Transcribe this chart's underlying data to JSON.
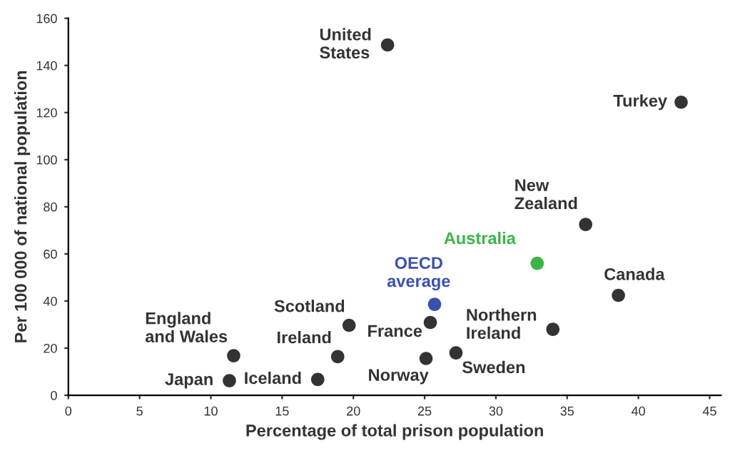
{
  "chart_data": {
    "type": "scatter",
    "xlabel": "Percentage of total prison population",
    "ylabel": "Per 100 000 of national population",
    "xlim": [
      0,
      45.8
    ],
    "xticks": [
      0,
      5,
      10,
      15,
      20,
      25,
      30,
      35,
      40,
      45
    ],
    "ylim": [
      0,
      160
    ],
    "yticks": [
      0,
      20,
      40,
      60,
      80,
      100,
      120,
      140,
      160
    ],
    "grid": false,
    "legend": false,
    "marker": "circle",
    "series": [
      {
        "color": "#333333",
        "x": [
          22.4,
          43.0,
          36.3,
          38.6,
          34.0,
          25.4,
          27.2,
          25.1,
          19.7,
          18.9,
          17.5,
          11.6,
          11.3
        ],
        "values": [
          148.7,
          124.4,
          72.5,
          42.4,
          28,
          30.9,
          18,
          15.6,
          29.7,
          16.4,
          6.7,
          16.8,
          6.2
        ]
      },
      {
        "name": "OECD\naverage",
        "color": "#3a50b0",
        "x": [
          25.7
        ],
        "values": [
          38.6
        ]
      },
      {
        "name": "Australia",
        "color": "#3cb44a",
        "x": [
          32.9
        ],
        "values": [
          56
        ]
      }
    ],
    "annotations": [
      {
        "text": "United\nStates",
        "x": 22.4,
        "y": 148.7
      },
      {
        "text": "Turkey",
        "x": 43.0,
        "y": 124.4
      },
      {
        "text": "New\nZealand",
        "x": 36.3,
        "y": 72.5
      },
      {
        "text": "Canada",
        "x": 38.6,
        "y": 42.4
      },
      {
        "text": "Northern\nIreland",
        "x": 34.0,
        "y": 28
      },
      {
        "text": "France",
        "x": 25.4,
        "y": 30.9
      },
      {
        "text": "Sweden",
        "x": 27.2,
        "y": 18
      },
      {
        "text": "Norway",
        "x": 25.1,
        "y": 15.6
      },
      {
        "text": "Scotland",
        "x": 19.7,
        "y": 29.7
      },
      {
        "text": "Ireland",
        "x": 18.9,
        "y": 16.4
      },
      {
        "text": "Iceland",
        "x": 17.5,
        "y": 6.7
      },
      {
        "text": "England\nand Wales",
        "x": 11.6,
        "y": 16.8
      },
      {
        "text": "Japan",
        "x": 11.3,
        "y": 6.2
      }
    ]
  }
}
